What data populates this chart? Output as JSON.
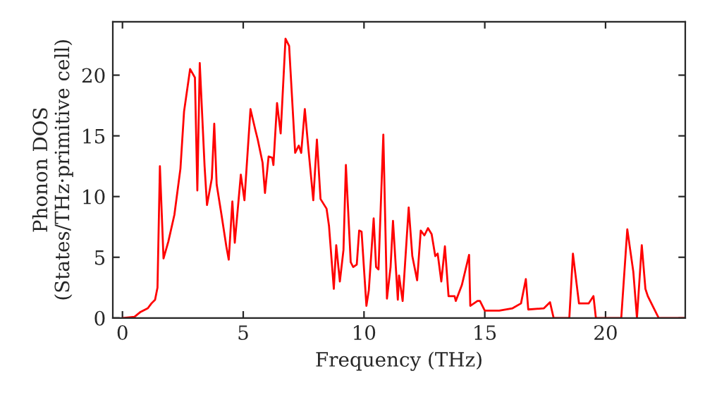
{
  "chart_data": {
    "type": "line",
    "xlabel": "Frequency (THz)",
    "ylabel": "Phonon DOS\n(States/THz·primitive cell)",
    "xlim": [
      -0.4,
      23.3
    ],
    "ylim": [
      0,
      24.4
    ],
    "xticks": [
      0,
      5,
      10,
      15,
      20
    ],
    "yticks": [
      0,
      5,
      10,
      15,
      20
    ],
    "grid": false,
    "marker": "none",
    "line_style": "solid",
    "series": [
      {
        "color": "#ff0000",
        "x": [
          0,
          0.5,
          0.75,
          1.05,
          1.2,
          1.35,
          1.45,
          1.55,
          1.7,
          1.9,
          2.15,
          2.4,
          2.55,
          2.8,
          3.0,
          3.1,
          3.2,
          3.4,
          3.5,
          3.7,
          3.8,
          3.9,
          4.1,
          4.3,
          4.4,
          4.55,
          4.65,
          4.9,
          5.05,
          5.3,
          5.5,
          5.6,
          5.8,
          5.9,
          6.05,
          6.2,
          6.25,
          6.4,
          6.55,
          6.75,
          6.9,
          7.15,
          7.3,
          7.4,
          7.55,
          7.7,
          7.9,
          8.05,
          8.2,
          8.45,
          8.55,
          8.75,
          8.85,
          9.0,
          9.15,
          9.25,
          9.45,
          9.55,
          9.7,
          9.8,
          9.9,
          10.1,
          10.2,
          10.4,
          10.5,
          10.6,
          10.8,
          10.95,
          11.1,
          11.2,
          11.4,
          11.45,
          11.6,
          11.85,
          12.0,
          12.2,
          12.35,
          12.5,
          12.65,
          12.8,
          12.95,
          13.05,
          13.2,
          13.35,
          13.5,
          13.75,
          13.8,
          14.05,
          14.35,
          14.4,
          14.7,
          14.8,
          15.0,
          15.6,
          16.15,
          16.5,
          16.7,
          16.8,
          17.45,
          17.7,
          17.85,
          18.5,
          18.65,
          18.9,
          19.3,
          19.5,
          19.6,
          20.65,
          20.9,
          21.15,
          21.3,
          21.5,
          21.65,
          21.75,
          22.2,
          23.3
        ],
        "values": [
          0,
          0.1,
          0.5,
          0.8,
          1.2,
          1.5,
          2.5,
          12.5,
          4.9,
          6.3,
          8.5,
          12.3,
          17,
          20.5,
          19.8,
          10.5,
          21,
          12.5,
          9.3,
          11.5,
          16,
          11,
          8.5,
          5.9,
          4.8,
          9.6,
          6.2,
          11.8,
          9.7,
          17.2,
          15.5,
          14.7,
          12.8,
          10.3,
          13.3,
          13.2,
          12.6,
          17.7,
          15.2,
          23,
          22.4,
          13.6,
          14.2,
          13.6,
          17.2,
          13.9,
          9.7,
          14.7,
          9.8,
          9.0,
          7.6,
          2.4,
          6.0,
          3.0,
          5.6,
          12.6,
          4.6,
          4.2,
          4.4,
          7.2,
          7.1,
          1.0,
          2.3,
          8.2,
          4.2,
          4.0,
          15.1,
          1.6,
          4.2,
          8.0,
          1.5,
          3.5,
          1.4,
          9.1,
          5.1,
          3.1,
          7.2,
          6.8,
          7.4,
          6.9,
          5.1,
          5.3,
          3.0,
          5.9,
          1.8,
          1.8,
          1.4,
          2.7,
          5.2,
          1.0,
          1.4,
          1.4,
          0.6,
          0.6,
          0.8,
          1.2,
          3.2,
          0.7,
          0.8,
          1.3,
          0,
          0,
          5.3,
          1.2,
          1.2,
          1.8,
          0,
          0,
          7.3,
          3.8,
          0,
          6.0,
          2.4,
          1.8,
          0,
          0
        ]
      }
    ]
  }
}
